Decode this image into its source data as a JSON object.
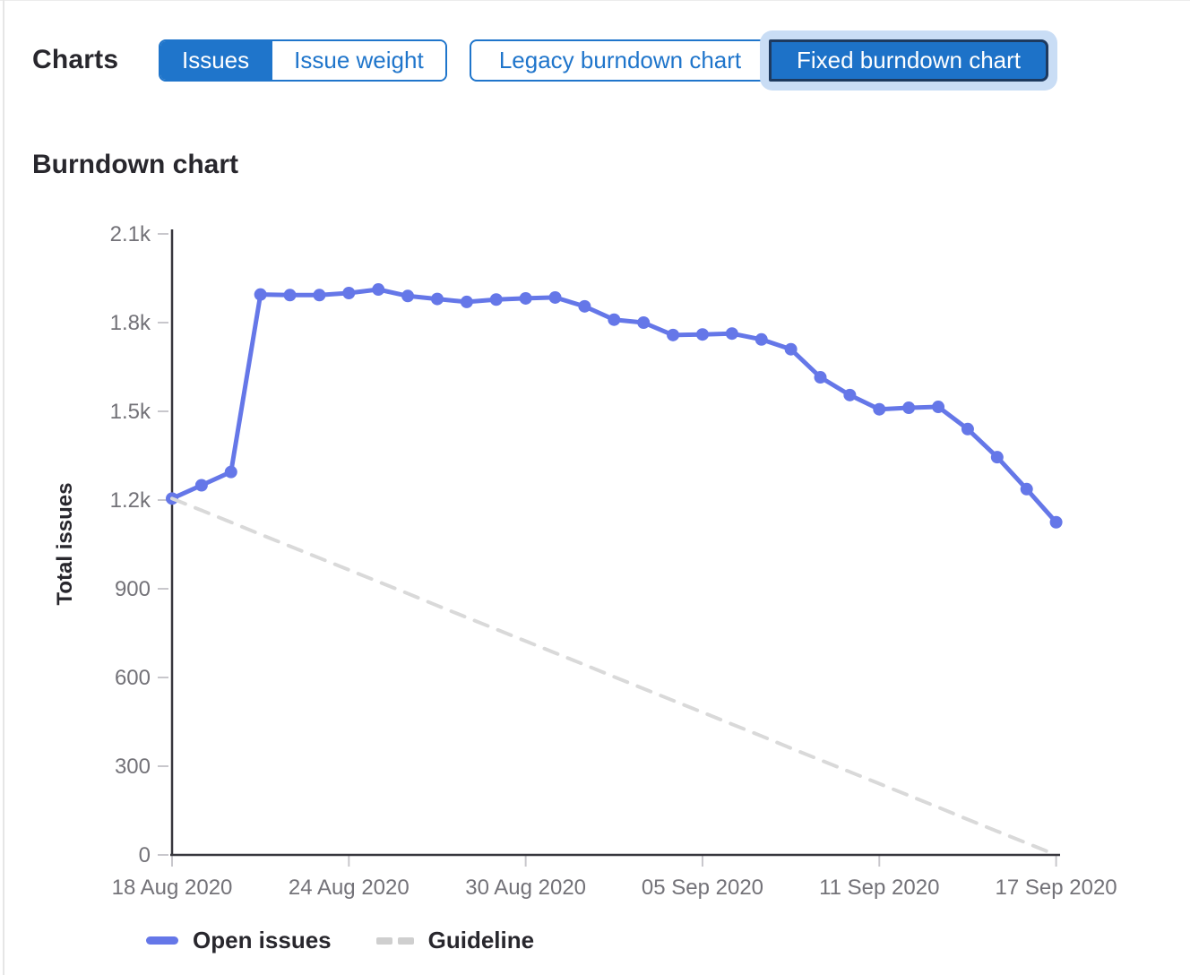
{
  "header": {
    "charts_label": "Charts",
    "metric_toggle": {
      "options": [
        {
          "label": "Issues",
          "selected": true
        },
        {
          "label": "Issue weight",
          "selected": false
        }
      ]
    },
    "chart_type_toggle": {
      "options": [
        {
          "label": "Legacy burndown chart",
          "selected": false
        },
        {
          "label": "Fixed burndown chart",
          "selected": true
        }
      ]
    }
  },
  "section_title": "Burndown chart",
  "colors": {
    "accent_blue": "#1f75cb",
    "selected_border": "#1e3a5f",
    "focus_ring": "#c9ddf5",
    "series_blue": "#6577e8",
    "guideline_gray": "#d9d9d9",
    "axis_dark": "#37363d",
    "tick_gray": "#c8c7cc",
    "tick_text": "#737278",
    "heading_text": "#28272d"
  },
  "chart_data": {
    "type": "line",
    "title": "Burndown chart",
    "xlabel": "",
    "ylabel": "Total issues",
    "ylim": [
      0,
      2100
    ],
    "grid": false,
    "legend_position": "bottom",
    "x": [
      "18 Aug 2020",
      "19 Aug 2020",
      "20 Aug 2020",
      "21 Aug 2020",
      "22 Aug 2020",
      "23 Aug 2020",
      "24 Aug 2020",
      "25 Aug 2020",
      "26 Aug 2020",
      "27 Aug 2020",
      "28 Aug 2020",
      "29 Aug 2020",
      "30 Aug 2020",
      "31 Aug 2020",
      "01 Sep 2020",
      "02 Sep 2020",
      "03 Sep 2020",
      "04 Sep 2020",
      "05 Sep 2020",
      "06 Sep 2020",
      "07 Sep 2020",
      "08 Sep 2020",
      "09 Sep 2020",
      "10 Sep 2020",
      "11 Sep 2020",
      "12 Sep 2020",
      "13 Sep 2020",
      "14 Sep 2020",
      "15 Sep 2020",
      "16 Sep 2020",
      "17 Sep 2020"
    ],
    "series": [
      {
        "name": "Open issues",
        "style": "solid",
        "color": "#6577e8",
        "show_points": true,
        "values": [
          1205,
          1250,
          1295,
          1895,
          1893,
          1893,
          1900,
          1912,
          1890,
          1880,
          1870,
          1878,
          1882,
          1885,
          1855,
          1810,
          1800,
          1758,
          1760,
          1763,
          1743,
          1710,
          1615,
          1555,
          1507,
          1512,
          1515,
          1440,
          1345,
          1237,
          1125
        ]
      },
      {
        "name": "Guideline",
        "style": "dashed",
        "color": "#d9d9d9",
        "show_points": false,
        "values": [
          1205,
          1165,
          1125,
          1084,
          1044,
          1004,
          964,
          924,
          884,
          843,
          803,
          763,
          723,
          683,
          643,
          602,
          562,
          522,
          482,
          442,
          402,
          361,
          321,
          281,
          241,
          201,
          161,
          120,
          80,
          40,
          0
        ]
      }
    ],
    "y_tick_values": [
      0,
      300,
      600,
      900,
      1200,
      1500,
      1800,
      2100
    ],
    "y_tick_labels": [
      "0",
      "300",
      "600",
      "900",
      "1.2k",
      "1.5k",
      "1.8k",
      "2.1k"
    ],
    "x_tick_indices": [
      0,
      6,
      12,
      18,
      24,
      30
    ],
    "x_tick_labels": [
      "18 Aug 2020",
      "24 Aug 2020",
      "30 Aug 2020",
      "05 Sep 2020",
      "11 Sep 2020",
      "17 Sep 2020"
    ]
  },
  "legend": {
    "items": [
      {
        "label": "Open issues",
        "swatch": "solid-line",
        "color": "#6577e8"
      },
      {
        "label": "Guideline",
        "swatch": "dashed-line",
        "color": "#cfcfcf"
      }
    ]
  }
}
